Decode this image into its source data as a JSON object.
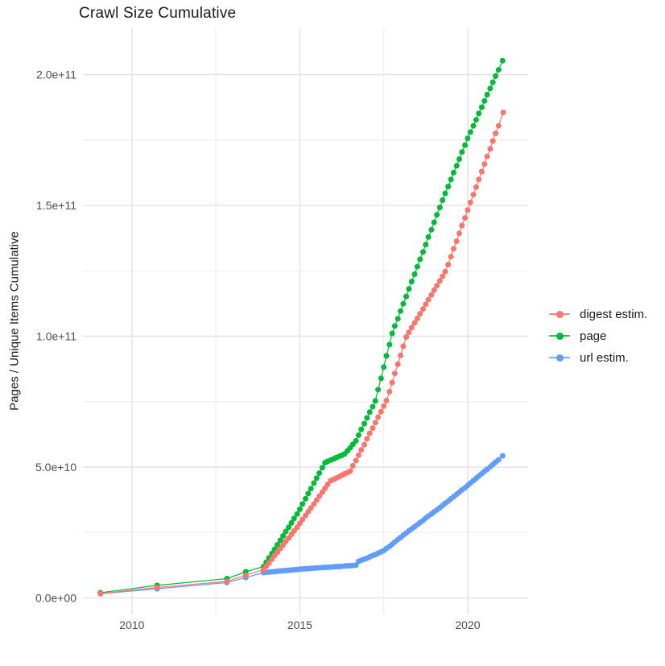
{
  "chart_data": {
    "type": "line",
    "title": "Crawl Size Cumulative",
    "xlabel": "",
    "ylabel": "Pages / Unique Items Cumulative",
    "legend_position": "right",
    "grid": true,
    "background": "#FFFFFF",
    "grid_major_color": "#E5E5E5",
    "grid_minor_color": "#F0F0F0",
    "axis_text_color": "#4D4D4D",
    "value_unit": "1e9 (billions of pages / unique items)",
    "xlim": [
      2008.54,
      2021.8
    ],
    "ylim_e9": [
      -6.3,
      217.7
    ],
    "x_ticks": [
      2010,
      2015,
      2020
    ],
    "x_tick_labels": [
      "2010",
      "2015",
      "2020"
    ],
    "x_minor_ticks": [
      2012.5,
      2017.5
    ],
    "y_ticks_e9": [
      0,
      50,
      100,
      150,
      200
    ],
    "y_tick_labels": [
      "0.0e+00",
      "5.0e+10",
      "1.0e+11",
      "1.5e+11",
      "2.0e+11"
    ],
    "y_minor_ticks_e9": [
      25,
      75,
      125,
      175
    ],
    "series": [
      {
        "name": "digest estim.",
        "color": "#F8766D",
        "points_year_value_e9": [
          [
            2009.06,
            1.7
          ],
          [
            2010.75,
            4.0
          ],
          [
            2012.83,
            6.3
          ],
          [
            2013.39,
            8.7
          ],
          [
            2013.92,
            10.8
          ],
          [
            2014.0,
            12.1
          ],
          [
            2014.08,
            13.4
          ],
          [
            2014.17,
            14.8
          ],
          [
            2014.25,
            16.2
          ],
          [
            2014.33,
            17.5
          ],
          [
            2014.42,
            18.9
          ],
          [
            2014.5,
            20.2
          ],
          [
            2014.58,
            21.6
          ],
          [
            2014.67,
            22.9
          ],
          [
            2014.75,
            24.3
          ],
          [
            2014.83,
            25.6
          ],
          [
            2014.92,
            27.0
          ],
          [
            2015.0,
            28.5
          ],
          [
            2015.08,
            30.0
          ],
          [
            2015.17,
            31.5
          ],
          [
            2015.25,
            33.0
          ],
          [
            2015.33,
            34.4
          ],
          [
            2015.42,
            35.9
          ],
          [
            2015.5,
            37.4
          ],
          [
            2015.58,
            38.9
          ],
          [
            2015.67,
            40.4
          ],
          [
            2015.75,
            41.9
          ],
          [
            2015.83,
            43.4
          ],
          [
            2015.92,
            44.8
          ],
          [
            2016.0,
            45.3
          ],
          [
            2016.08,
            45.8
          ],
          [
            2016.17,
            46.3
          ],
          [
            2016.25,
            46.9
          ],
          [
            2016.33,
            47.4
          ],
          [
            2016.42,
            47.9
          ],
          [
            2016.5,
            48.5
          ],
          [
            2016.58,
            50.5
          ],
          [
            2016.67,
            52.5
          ],
          [
            2016.75,
            54.6
          ],
          [
            2016.83,
            56.6
          ],
          [
            2016.92,
            58.6
          ],
          [
            2017.0,
            60.8
          ],
          [
            2017.08,
            62.9
          ],
          [
            2017.17,
            64.9
          ],
          [
            2017.25,
            67.0
          ],
          [
            2017.33,
            69.1
          ],
          [
            2017.42,
            71.2
          ],
          [
            2017.5,
            73.3
          ],
          [
            2017.58,
            75.4
          ],
          [
            2017.67,
            78.8
          ],
          [
            2017.75,
            82.3
          ],
          [
            2017.83,
            85.8
          ],
          [
            2017.92,
            89.3
          ],
          [
            2018.0,
            92.7
          ],
          [
            2018.08,
            96.2
          ],
          [
            2018.17,
            99.7
          ],
          [
            2018.25,
            101.5
          ],
          [
            2018.33,
            103.3
          ],
          [
            2018.42,
            105.1
          ],
          [
            2018.5,
            106.8
          ],
          [
            2018.58,
            108.6
          ],
          [
            2018.67,
            110.4
          ],
          [
            2018.75,
            112.2
          ],
          [
            2018.83,
            114.0
          ],
          [
            2018.92,
            115.8
          ],
          [
            2019.0,
            117.6
          ],
          [
            2019.08,
            119.3
          ],
          [
            2019.17,
            121.1
          ],
          [
            2019.25,
            122.9
          ],
          [
            2019.33,
            124.7
          ],
          [
            2019.42,
            127.4
          ],
          [
            2019.5,
            130.4
          ],
          [
            2019.58,
            133.4
          ],
          [
            2019.67,
            136.3
          ],
          [
            2019.75,
            139.3
          ],
          [
            2019.83,
            142.3
          ],
          [
            2019.92,
            145.2
          ],
          [
            2020.0,
            148.2
          ],
          [
            2020.08,
            151.1
          ],
          [
            2020.17,
            154.1
          ],
          [
            2020.25,
            157.0
          ],
          [
            2020.33,
            159.9
          ],
          [
            2020.42,
            162.9
          ],
          [
            2020.5,
            165.8
          ],
          [
            2020.58,
            168.7
          ],
          [
            2020.67,
            171.6
          ],
          [
            2020.75,
            174.6
          ],
          [
            2020.83,
            177.5
          ],
          [
            2020.92,
            180.4
          ],
          [
            2021.06,
            185.5
          ]
        ]
      },
      {
        "name": "page",
        "color": "#00BA38",
        "points_year_value_e9": [
          [
            2009.06,
            2.0
          ],
          [
            2010.75,
            4.8
          ],
          [
            2012.83,
            7.4
          ],
          [
            2013.39,
            10.0
          ],
          [
            2013.92,
            12.0
          ],
          [
            2014.0,
            13.6
          ],
          [
            2014.08,
            15.3
          ],
          [
            2014.17,
            17.0
          ],
          [
            2014.25,
            18.6
          ],
          [
            2014.33,
            20.3
          ],
          [
            2014.42,
            22.0
          ],
          [
            2014.5,
            23.7
          ],
          [
            2014.58,
            25.4
          ],
          [
            2014.67,
            27.0
          ],
          [
            2014.75,
            28.7
          ],
          [
            2014.83,
            30.4
          ],
          [
            2014.92,
            32.1
          ],
          [
            2015.0,
            33.9
          ],
          [
            2015.08,
            35.9
          ],
          [
            2015.17,
            37.9
          ],
          [
            2015.25,
            39.9
          ],
          [
            2015.33,
            41.8
          ],
          [
            2015.42,
            43.9
          ],
          [
            2015.5,
            45.8
          ],
          [
            2015.58,
            47.7
          ],
          [
            2015.67,
            49.8
          ],
          [
            2015.75,
            51.7
          ],
          [
            2015.83,
            52.2
          ],
          [
            2015.92,
            52.7
          ],
          [
            2016.0,
            53.1
          ],
          [
            2016.08,
            53.6
          ],
          [
            2016.17,
            54.1
          ],
          [
            2016.25,
            54.5
          ],
          [
            2016.33,
            55.0
          ],
          [
            2016.42,
            56.2
          ],
          [
            2016.5,
            57.4
          ],
          [
            2016.58,
            58.7
          ],
          [
            2016.67,
            60.0
          ],
          [
            2016.75,
            62.2
          ],
          [
            2016.83,
            64.4
          ],
          [
            2016.92,
            66.6
          ],
          [
            2017.0,
            68.8
          ],
          [
            2017.08,
            71.0
          ],
          [
            2017.17,
            73.1
          ],
          [
            2017.25,
            75.3
          ],
          [
            2017.33,
            79.6
          ],
          [
            2017.42,
            83.9
          ],
          [
            2017.5,
            88.2
          ],
          [
            2017.58,
            92.5
          ],
          [
            2017.67,
            96.8
          ],
          [
            2017.75,
            101.1
          ],
          [
            2017.83,
            103.9
          ],
          [
            2017.92,
            106.7
          ],
          [
            2018.0,
            109.6
          ],
          [
            2018.08,
            112.4
          ],
          [
            2018.17,
            115.2
          ],
          [
            2018.25,
            118.1
          ],
          [
            2018.33,
            120.9
          ],
          [
            2018.42,
            123.7
          ],
          [
            2018.5,
            126.6
          ],
          [
            2018.58,
            129.4
          ],
          [
            2018.67,
            132.2
          ],
          [
            2018.75,
            135.0
          ],
          [
            2018.83,
            137.9
          ],
          [
            2018.92,
            140.7
          ],
          [
            2019.0,
            143.5
          ],
          [
            2019.08,
            146.4
          ],
          [
            2019.17,
            149.2
          ],
          [
            2019.25,
            152.0
          ],
          [
            2019.33,
            154.6
          ],
          [
            2019.42,
            157.2
          ],
          [
            2019.5,
            159.9
          ],
          [
            2019.58,
            162.5
          ],
          [
            2019.67,
            165.1
          ],
          [
            2019.75,
            167.7
          ],
          [
            2019.83,
            170.4
          ],
          [
            2019.92,
            173.0
          ],
          [
            2020.0,
            175.6
          ],
          [
            2020.08,
            178.0
          ],
          [
            2020.17,
            180.4
          ],
          [
            2020.25,
            182.7
          ],
          [
            2020.33,
            185.1
          ],
          [
            2020.42,
            187.5
          ],
          [
            2020.5,
            189.9
          ],
          [
            2020.58,
            192.3
          ],
          [
            2020.67,
            194.7
          ],
          [
            2020.75,
            197.0
          ],
          [
            2020.83,
            199.4
          ],
          [
            2020.92,
            201.8
          ],
          [
            2021.04,
            205.3
          ]
        ]
      },
      {
        "name": "url estim.",
        "color": "#619CFF",
        "points_year_value_e9": [
          [
            2009.06,
            1.6
          ],
          [
            2010.75,
            3.5
          ],
          [
            2012.83,
            5.9
          ],
          [
            2013.39,
            7.8
          ],
          [
            2013.92,
            9.7
          ],
          [
            2014.0,
            9.8
          ],
          [
            2014.08,
            9.9
          ],
          [
            2014.17,
            10.0
          ],
          [
            2014.25,
            10.1
          ],
          [
            2014.33,
            10.2
          ],
          [
            2014.42,
            10.3
          ],
          [
            2014.5,
            10.4
          ],
          [
            2014.58,
            10.5
          ],
          [
            2014.67,
            10.6
          ],
          [
            2014.75,
            10.7
          ],
          [
            2014.83,
            10.8
          ],
          [
            2014.92,
            10.9
          ],
          [
            2015.0,
            11.0
          ],
          [
            2015.08,
            11.1
          ],
          [
            2015.17,
            11.2
          ],
          [
            2015.25,
            11.2
          ],
          [
            2015.33,
            11.3
          ],
          [
            2015.42,
            11.4
          ],
          [
            2015.5,
            11.5
          ],
          [
            2015.58,
            11.5
          ],
          [
            2015.67,
            11.6
          ],
          [
            2015.75,
            11.7
          ],
          [
            2015.83,
            11.7
          ],
          [
            2015.92,
            11.8
          ],
          [
            2016.0,
            11.9
          ],
          [
            2016.08,
            12.0
          ],
          [
            2016.17,
            12.0
          ],
          [
            2016.25,
            12.1
          ],
          [
            2016.33,
            12.2
          ],
          [
            2016.42,
            12.3
          ],
          [
            2016.5,
            12.3
          ],
          [
            2016.58,
            12.4
          ],
          [
            2016.67,
            12.5
          ],
          [
            2016.75,
            14.0
          ],
          [
            2016.83,
            14.4
          ],
          [
            2016.92,
            14.8
          ],
          [
            2017.0,
            15.2
          ],
          [
            2017.08,
            15.7
          ],
          [
            2017.17,
            16.2
          ],
          [
            2017.25,
            16.6
          ],
          [
            2017.33,
            17.1
          ],
          [
            2017.42,
            17.6
          ],
          [
            2017.5,
            18.1
          ],
          [
            2017.58,
            18.9
          ],
          [
            2017.67,
            19.7
          ],
          [
            2017.75,
            20.5
          ],
          [
            2017.83,
            21.4
          ],
          [
            2017.92,
            22.3
          ],
          [
            2018.0,
            23.1
          ],
          [
            2018.08,
            24.0
          ],
          [
            2018.17,
            24.8
          ],
          [
            2018.25,
            25.7
          ],
          [
            2018.33,
            26.4
          ],
          [
            2018.42,
            27.2
          ],
          [
            2018.5,
            28.0
          ],
          [
            2018.58,
            28.8
          ],
          [
            2018.67,
            29.6
          ],
          [
            2018.75,
            30.5
          ],
          [
            2018.83,
            31.3
          ],
          [
            2018.92,
            32.1
          ],
          [
            2019.0,
            32.9
          ],
          [
            2019.08,
            33.6
          ],
          [
            2019.17,
            34.5
          ],
          [
            2019.25,
            35.3
          ],
          [
            2019.33,
            36.2
          ],
          [
            2019.42,
            37.0
          ],
          [
            2019.5,
            37.9
          ],
          [
            2019.58,
            38.7
          ],
          [
            2019.67,
            39.6
          ],
          [
            2019.75,
            40.4
          ],
          [
            2019.83,
            41.3
          ],
          [
            2019.92,
            42.1
          ],
          [
            2020.0,
            43.0
          ],
          [
            2020.08,
            43.9
          ],
          [
            2020.17,
            44.8
          ],
          [
            2020.25,
            45.7
          ],
          [
            2020.33,
            46.6
          ],
          [
            2020.42,
            47.5
          ],
          [
            2020.5,
            48.4
          ],
          [
            2020.58,
            49.2
          ],
          [
            2020.67,
            50.1
          ],
          [
            2020.75,
            51.0
          ],
          [
            2020.83,
            51.9
          ],
          [
            2020.92,
            52.8
          ],
          [
            2021.04,
            54.3
          ]
        ]
      }
    ]
  }
}
